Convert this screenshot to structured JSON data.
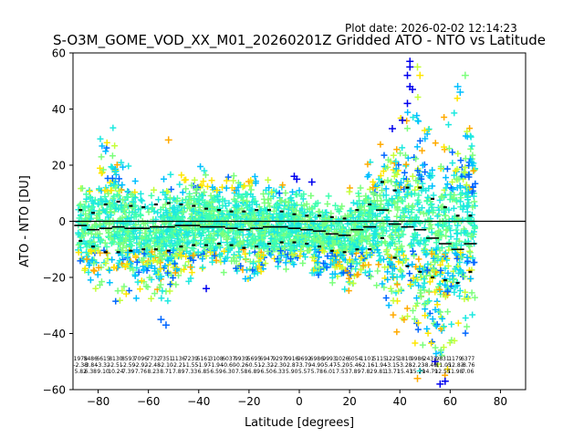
{
  "chart_data": {
    "type": "scatter",
    "title": "S-O3M_GOME_VOD_XX_M01_20260201Z Gridded ATO - NTO vs Latitude",
    "plot_date": "Plot date: 2026-02-02 12:14:23",
    "xlabel": "Latitude [degrees]",
    "ylabel": "ATO - NTO [DU]",
    "xlim": [
      -90,
      90
    ],
    "ylim": [
      -60,
      60
    ],
    "xticks": [
      -80,
      -60,
      -40,
      -20,
      0,
      20,
      40,
      60,
      80
    ],
    "yticks": [
      -60,
      -40,
      -20,
      0,
      20,
      40,
      60
    ],
    "grid": false,
    "reference_line_y": 0,
    "scatter_marker": "+",
    "scatter_colors": [
      "#0000ee",
      "#0066ff",
      "#00bfff",
      "#1de9e0",
      "#40ffb0",
      "#7cff7c",
      "#c4ff3a",
      "#ffe600",
      "#ffaa00"
    ],
    "scatter_envelope": [
      {
        "lat": -88,
        "lower": -22,
        "upper": 16
      },
      {
        "lat": -82,
        "lower": -25,
        "upper": 18
      },
      {
        "lat": -78,
        "lower": -31,
        "upper": 38
      },
      {
        "lat": -74,
        "lower": -30,
        "upper": 40
      },
      {
        "lat": -70,
        "lower": -28,
        "upper": 26
      },
      {
        "lat": -65,
        "lower": -30,
        "upper": 20
      },
      {
        "lat": -60,
        "lower": -30,
        "upper": 18
      },
      {
        "lat": -55,
        "lower": -34,
        "upper": 22
      },
      {
        "lat": -50,
        "lower": -27,
        "upper": 22
      },
      {
        "lat": -45,
        "lower": -25,
        "upper": 20
      },
      {
        "lat": -40,
        "lower": -20,
        "upper": 25
      },
      {
        "lat": -35,
        "lower": -18,
        "upper": 22
      },
      {
        "lat": -30,
        "lower": -20,
        "upper": 20
      },
      {
        "lat": -25,
        "lower": -22,
        "upper": 23
      },
      {
        "lat": -20,
        "lower": -25,
        "upper": 25
      },
      {
        "lat": -15,
        "lower": -24,
        "upper": 22
      },
      {
        "lat": -10,
        "lower": -20,
        "upper": 18
      },
      {
        "lat": -5,
        "lower": -18,
        "upper": 17
      },
      {
        "lat": 0,
        "lower": -18,
        "upper": 17
      },
      {
        "lat": 5,
        "lower": -19,
        "upper": 14
      },
      {
        "lat": 10,
        "lower": -22,
        "upper": 14
      },
      {
        "lat": 15,
        "lower": -25,
        "upper": 14
      },
      {
        "lat": 20,
        "lower": -28,
        "upper": 15
      },
      {
        "lat": 25,
        "lower": -25,
        "upper": 22
      },
      {
        "lat": 30,
        "lower": -22,
        "upper": 30
      },
      {
        "lat": 35,
        "lower": -38,
        "upper": 35
      },
      {
        "lat": 40,
        "lower": -42,
        "upper": 45
      },
      {
        "lat": 45,
        "lower": -50,
        "upper": 55
      },
      {
        "lat": 50,
        "lower": -56,
        "upper": 45
      },
      {
        "lat": 55,
        "lower": -58,
        "upper": 38
      },
      {
        "lat": 60,
        "lower": -55,
        "upper": 48
      },
      {
        "lat": 65,
        "lower": -45,
        "upper": 52
      },
      {
        "lat": 70,
        "lower": -35,
        "upper": 52
      }
    ],
    "highlight_points": [
      {
        "lat": 44,
        "y": 57,
        "color": "#0000ee"
      },
      {
        "lat": 44,
        "y": 55,
        "color": "#0000ee"
      },
      {
        "lat": 43,
        "y": 52,
        "color": "#0000ee"
      },
      {
        "lat": 44,
        "y": 48,
        "color": "#0000ee"
      },
      {
        "lat": 45,
        "y": 47,
        "color": "#0000ee"
      },
      {
        "lat": 43,
        "y": 42,
        "color": "#0000ee"
      },
      {
        "lat": 41,
        "y": 36,
        "color": "#0000ee"
      },
      {
        "lat": 37,
        "y": 33,
        "color": "#0000ee"
      },
      {
        "lat": 47,
        "y": 55,
        "color": "#c4ff3a"
      },
      {
        "lat": 48,
        "y": 52,
        "color": "#ffe600"
      },
      {
        "lat": 66,
        "y": 52,
        "color": "#7cff7c"
      },
      {
        "lat": 63,
        "y": 48,
        "color": "#00bfff"
      },
      {
        "lat": 64,
        "y": 46,
        "color": "#00bfff"
      },
      {
        "lat": -2,
        "y": 16,
        "color": "#0000ee"
      },
      {
        "lat": -1,
        "y": 15,
        "color": "#0000ee"
      },
      {
        "lat": 5,
        "y": 14,
        "color": "#0000ee"
      },
      {
        "lat": -52,
        "y": 29,
        "color": "#ffaa00"
      },
      {
        "lat": -37,
        "y": -24,
        "color": "#0000ee"
      },
      {
        "lat": 56,
        "y": -58,
        "color": "#0000ee"
      },
      {
        "lat": 58,
        "y": -57,
        "color": "#0000ee"
      },
      {
        "lat": 54,
        "y": -50,
        "color": "#0000ee"
      },
      {
        "lat": -55,
        "y": -35,
        "color": "#0066ff"
      },
      {
        "lat": -53,
        "y": -37,
        "color": "#0066ff"
      },
      {
        "lat": 47,
        "y": -56,
        "color": "#ffaa00"
      }
    ],
    "mean_markers": [
      {
        "lat": -87,
        "mean": -1.5,
        "std": 5.5
      },
      {
        "lat": -82,
        "mean": -3,
        "std": 6
      },
      {
        "lat": -77,
        "mean": -2.5,
        "std": 8.5
      },
      {
        "lat": -72,
        "mean": -2,
        "std": 9
      },
      {
        "lat": -67,
        "mean": -2.5,
        "std": 8
      },
      {
        "lat": -62,
        "mean": -2.5,
        "std": 7.5
      },
      {
        "lat": -57,
        "mean": -2,
        "std": 8
      },
      {
        "lat": -52,
        "mean": -2,
        "std": 8.5
      },
      {
        "lat": -47,
        "mean": -1.5,
        "std": 7.5
      },
      {
        "lat": -42,
        "mean": -1.5,
        "std": 7
      },
      {
        "lat": -37,
        "mean": -2,
        "std": 6.5
      },
      {
        "lat": -32,
        "mean": -2,
        "std": 6
      },
      {
        "lat": -27,
        "mean": -2.5,
        "std": 6
      },
      {
        "lat": -22,
        "mean": -3,
        "std": 6.5
      },
      {
        "lat": -17,
        "mean": -2.5,
        "std": 6.5
      },
      {
        "lat": -12,
        "mean": -2,
        "std": 6
      },
      {
        "lat": -7,
        "mean": -2,
        "std": 5.5
      },
      {
        "lat": -2,
        "mean": -2.5,
        "std": 5
      },
      {
        "lat": 3,
        "mean": -3,
        "std": 5
      },
      {
        "lat": 8,
        "mean": -3.5,
        "std": 5.5
      },
      {
        "lat": 13,
        "mean": -4.5,
        "std": 6
      },
      {
        "lat": 18,
        "mean": -5,
        "std": 6
      },
      {
        "lat": 23,
        "mean": -3,
        "std": 7
      },
      {
        "lat": 28,
        "mean": -2,
        "std": 8
      },
      {
        "lat": 33,
        "mean": 4,
        "std": 10
      },
      {
        "lat": 38,
        "mean": -1,
        "std": 12
      },
      {
        "lat": 43,
        "mean": -2,
        "std": 14
      },
      {
        "lat": 48,
        "mean": -3,
        "std": 15
      },
      {
        "lat": 53,
        "mean": -6,
        "std": 14
      },
      {
        "lat": 58,
        "mean": -8,
        "std": 13
      },
      {
        "lat": 63,
        "mean": -10,
        "std": 12
      },
      {
        "lat": 68,
        "mean": -8,
        "std": 10
      }
    ],
    "bin_labels": [
      {
        "lat": -87,
        "count": "1978",
        "mean": "-2.38",
        "std": "5.82"
      },
      {
        "lat": -83,
        "count": "5486",
        "mean": "-3.84",
        "std": "6.38"
      },
      {
        "lat": -78,
        "count": "6615",
        "mean": "-3.32",
        "std": "9.10"
      },
      {
        "lat": -73,
        "count": "8130",
        "mean": "-2.51",
        "std": "10.24"
      },
      {
        "lat": -68,
        "count": "8593",
        "mean": "-2.59",
        "std": "7.39"
      },
      {
        "lat": -63,
        "count": "7096",
        "mean": "-2.92",
        "std": "7.76"
      },
      {
        "lat": -58,
        "count": "7732",
        "mean": "-2.48",
        "std": "8.23"
      },
      {
        "lat": -53,
        "count": "7351",
        "mean": "-2.10",
        "std": "8.71"
      },
      {
        "lat": -48,
        "count": "1136",
        "mean": "-2.21",
        "std": "7.89"
      },
      {
        "lat": -43,
        "count": "7239",
        "mean": "-1.55",
        "std": "7.33"
      },
      {
        "lat": -38,
        "count": "5161",
        "mean": "-1.97",
        "std": "6.85"
      },
      {
        "lat": -33,
        "count": "3108",
        "mean": "-1.94",
        "std": "6.59"
      },
      {
        "lat": -28,
        "count": "6037",
        "mean": "-0.60",
        "std": "6.30"
      },
      {
        "lat": -23,
        "count": "9939",
        "mean": "-0.26",
        "std": "7.58"
      },
      {
        "lat": -18,
        "count": "5695",
        "mean": "-0.51",
        "std": "6.89"
      },
      {
        "lat": -13,
        "count": "6947",
        "mean": "-2.32",
        "std": "6.50"
      },
      {
        "lat": -8,
        "count": "9297",
        "mean": "-2.30",
        "std": "6.33"
      },
      {
        "lat": -3,
        "count": "9916",
        "mean": "-2.87",
        "std": "5.90"
      },
      {
        "lat": 2,
        "count": "9692",
        "mean": "-3.79",
        "std": "5.57"
      },
      {
        "lat": 7,
        "count": "6986",
        "mean": "-4.90",
        "std": "5.78"
      },
      {
        "lat": 12,
        "count": "9993",
        "mean": "-5.47",
        "std": "6.01"
      },
      {
        "lat": 17,
        "count": "1026",
        "mean": "-5.20",
        "std": "7.53"
      },
      {
        "lat": 22,
        "count": "6054",
        "mean": "-5.46",
        "std": "7.89"
      },
      {
        "lat": 27,
        "count": "1101",
        "mean": "-2.16",
        "std": "7.82"
      },
      {
        "lat": 32,
        "count": "5115",
        "mean": "-1.94",
        "std": "9.81"
      },
      {
        "lat": 37,
        "count": "1225",
        "mean": "-3.15",
        "std": "13.71"
      },
      {
        "lat": 42,
        "count": "1810",
        "mean": "-3.28",
        "std": "15.43"
      },
      {
        "lat": 47,
        "count": "9986",
        "mean": "-2.23",
        "std": "15.29"
      },
      {
        "lat": 52,
        "count": "2431",
        "mean": "-8.49",
        "std": "14.79"
      },
      {
        "lat": 57,
        "count": "9831",
        "mean": "-11.05",
        "std": "12.55"
      },
      {
        "lat": 62,
        "count": "1179",
        "mean": "-12.83",
        "std": "11.98"
      },
      {
        "lat": 67,
        "count": "6377",
        "mean": "-8.76",
        "std": "7.06"
      }
    ]
  }
}
